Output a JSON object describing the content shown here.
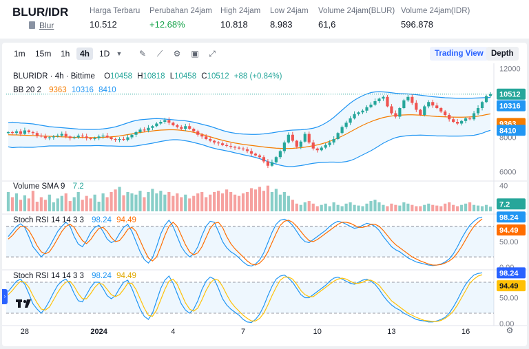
{
  "header": {
    "pair": "BLUR/IDR",
    "coin_name": "Blur",
    "stats": [
      {
        "label": "Harga Terbaru",
        "value": "10.512"
      },
      {
        "label": "Perubahan 24jam",
        "value": "+12.68%"
      },
      {
        "label": "High 24jam",
        "value": "10.818"
      },
      {
        "label": "Low 24jam",
        "value": "8.983"
      },
      {
        "label": "Volume 24jam(BLUR)",
        "value": "61,6"
      },
      {
        "label": "Volume 24jam(IDR)",
        "value": "596.878"
      }
    ]
  },
  "toolbar": {
    "timeframes": [
      "1m",
      "15m",
      "1h",
      "4h",
      "1D"
    ],
    "active_timeframe": "4h",
    "tools": [
      "pencil-icon",
      "line-chart-icon",
      "gear-icon",
      "save-icon",
      "expand-icon"
    ],
    "views": [
      "Trading View",
      "Depth"
    ],
    "active_view": "Trading View"
  },
  "legend": {
    "symbol": "BLURIDR · 4h · Bittime",
    "ohlc": {
      "O": "10458",
      "H": "10818",
      "L": "10458",
      "C": "10512",
      "change": "+88 (+0.84%)"
    },
    "bb": {
      "label": "BB 20 2",
      "basis": "9363",
      "upper": "10316",
      "lower": "8410"
    },
    "volume": {
      "label": "Volume SMA 9",
      "value": "7.2"
    },
    "stoch1": {
      "label": "Stoch RSI 14 14 3 3",
      "k": "98.24",
      "d": "94.49"
    },
    "stoch2": {
      "label": "Stoch RSI 14 14 3 3",
      "k": "98.24",
      "d": "94.49"
    }
  },
  "colors": {
    "up": "#26a69a",
    "down": "#ef5350",
    "bb_basis": "#f57c00",
    "bb_band": "#2196f3",
    "stoch_k": "#2196f3",
    "stoch_d": "#ff6d00",
    "stoch_d2": "#ffc107",
    "accent": "#2962ff"
  },
  "chart_data": {
    "type": "candlestick",
    "x_tick_labels": [
      "28",
      "2024",
      "4",
      "7",
      "10",
      "13",
      "16"
    ],
    "price_axis": {
      "ticks": [
        "12000",
        "10000",
        "8000",
        "6000"
      ],
      "ylim": [
        5500,
        12300
      ]
    },
    "volume_axis": {
      "ticks": [
        "40"
      ]
    },
    "stoch_axis": {
      "ticks": [
        "98.24",
        "94.49",
        "50.00",
        "0.00"
      ]
    },
    "price_labels": {
      "last": "10512",
      "bb_upper": "10316",
      "bb_basis": "9363",
      "bb_lower": "8410"
    },
    "volume_label": "7.2",
    "close": [
      8300,
      8250,
      8350,
      8200,
      8400,
      8300,
      8250,
      8100,
      8050,
      7950,
      8000,
      8050,
      8100,
      8200,
      8050,
      7950,
      8000,
      8100,
      8050,
      7950,
      7900,
      7950,
      8050,
      8100,
      8000,
      7900,
      7850,
      7900,
      7850,
      8000,
      8150,
      8300,
      8450,
      8400,
      8550,
      8650,
      8800,
      8900,
      9000,
      8850,
      8700,
      8600,
      8500,
      8650,
      8500,
      8350,
      8150,
      8050,
      7900,
      7800,
      7700,
      7650,
      7550,
      7500,
      7450,
      7400,
      7350,
      7300,
      7200,
      7050,
      6950,
      6850,
      6600,
      6350,
      6550,
      6850,
      7200,
      7700,
      8150,
      7800,
      7450,
      7750,
      8200,
      7700,
      7350,
      7250,
      7400,
      7550,
      7700,
      7900,
      8250,
      8600,
      8850,
      9100,
      9350,
      9450,
      9550,
      9750,
      9900,
      10100,
      10250,
      10350,
      9800,
      9400,
      9200,
      9700,
      10150,
      10350,
      10000,
      9600,
      9300,
      9800,
      10050,
      9850,
      9700,
      9500,
      9300,
      9050,
      8900,
      8800,
      8950,
      9100,
      9050,
      9400,
      9700,
      10050,
      10400,
      10512
    ],
    "bb_upper": [
      8850,
      8880,
      8860,
      8830,
      8820,
      8800,
      8780,
      8740,
      8700,
      8660,
      8620,
      8600,
      8580,
      8560,
      8540,
      8520,
      8500,
      8480,
      8470,
      8460,
      8460,
      8460,
      8470,
      8490,
      8520,
      8560,
      8610,
      8680,
      8760,
      8840,
      8920,
      8980,
      9020,
      9040,
      9060,
      9080,
      9090,
      9080,
      9060,
      9040,
      9020,
      9000,
      8980,
      8960,
      8920,
      8880,
      8820,
      8760,
      8700,
      8640,
      8560,
      8480,
      8400,
      8330,
      8280,
      8240,
      8210,
      8190,
      8180,
      8170,
      8170,
      8180,
      8200,
      8230,
      8260,
      8300,
      8340,
      8370,
      8400,
      8420,
      8430,
      8440,
      8460,
      8490,
      8530,
      8600,
      8700,
      8830,
      8980,
      9160,
      9370,
      9580,
      9790,
      9990,
      10160,
      10300,
      10420,
      10520,
      10600,
      10640,
      10650,
      10640,
      10620,
      10590,
      10560,
      10540,
      10530,
      10520,
      10500,
      10480,
      10450,
      10420,
      10390,
      10360,
      10340,
      10320,
      10300,
      10290,
      10280,
      10270,
      10265,
      10265,
      10270,
      10280,
      10290,
      10300,
      10310,
      10316
    ],
    "bb_basis": [
      8150,
      8140,
      8140,
      8130,
      8120,
      8110,
      8100,
      8090,
      8080,
      8070,
      8060,
      8050,
      8040,
      8030,
      8020,
      8010,
      8000,
      7995,
      7990,
      7985,
      7985,
      7990,
      7995,
      8000,
      8010,
      8030,
      8050,
      8080,
      8120,
      8160,
      8200,
      8240,
      8280,
      8310,
      8340,
      8370,
      8400,
      8420,
      8430,
      8440,
      8440,
      8430,
      8410,
      8380,
      8340,
      8290,
      8230,
      8170,
      8100,
      8030,
      7960,
      7890,
      7830,
      7770,
      7720,
      7670,
      7630,
      7590,
      7560,
      7530,
      7500,
      7470,
      7440,
      7410,
      7390,
      7370,
      7360,
      7350,
      7350,
      7360,
      7380,
      7400,
      7430,
      7470,
      7510,
      7560,
      7620,
      7690,
      7770,
      7860,
      7960,
      8070,
      8190,
      8320,
      8450,
      8580,
      8700,
      8810,
      8910,
      9000,
      9080,
      9150,
      9200,
      9240,
      9270,
      9290,
      9300,
      9310,
      9310,
      9300,
      9290,
      9270,
      9250,
      9230,
      9210,
      9200,
      9190,
      9180,
      9175,
      9170,
      9170,
      9175,
      9185,
      9200,
      9230,
      9270,
      9320,
      9363
    ],
    "bb_lower": [
      7450,
      7400,
      7420,
      7430,
      7420,
      7420,
      7420,
      7440,
      7460,
      7480,
      7500,
      7500,
      7500,
      7500,
      7500,
      7500,
      7500,
      7510,
      7510,
      7510,
      7510,
      7520,
      7520,
      7510,
      7500,
      7500,
      7490,
      7480,
      7480,
      7480,
      7480,
      7500,
      7540,
      7580,
      7620,
      7660,
      7710,
      7760,
      7800,
      7840,
      7860,
      7860,
      7840,
      7800,
      7760,
      7700,
      7640,
      7580,
      7500,
      7420,
      7360,
      7300,
      7260,
      7210,
      7160,
      7100,
      7050,
      6990,
      6940,
      6890,
      6830,
      6760,
      6680,
      6590,
      6520,
      6440,
      6380,
      6330,
      6300,
      6300,
      6330,
      6360,
      6400,
      6450,
      6490,
      6520,
      6540,
      6550,
      6560,
      6560,
      6550,
      6560,
      6590,
      6650,
      6740,
      6860,
      6980,
      7100,
      7220,
      7360,
      7510,
      7660,
      7780,
      7890,
      7980,
      8040,
      8070,
      8100,
      8120,
      8120,
      8130,
      8120,
      8110,
      8100,
      8080,
      8080,
      8080,
      8070,
      8070,
      8070,
      8075,
      8085,
      8100,
      8120,
      8170,
      8240,
      8330,
      8410
    ],
    "volume": [
      30,
      22,
      28,
      18,
      25,
      20,
      32,
      15,
      22,
      18,
      26,
      14,
      20,
      24,
      28,
      16,
      22,
      30,
      18,
      24,
      20,
      26,
      15,
      28,
      22,
      30,
      34,
      38,
      25,
      30,
      28,
      26,
      32,
      22,
      30,
      35,
      28,
      32,
      26,
      30,
      24,
      28,
      22,
      26,
      20,
      24,
      28,
      30,
      22,
      26,
      30,
      32,
      28,
      34,
      30,
      26,
      24,
      28,
      30,
      36,
      34,
      38,
      32,
      40,
      30,
      35,
      26,
      30,
      24,
      18,
      12,
      10,
      14,
      16,
      12,
      8,
      10,
      12,
      8,
      14,
      10,
      8,
      12,
      14,
      10,
      9,
      8,
      12,
      16,
      18,
      14,
      10,
      8,
      12,
      10,
      9,
      14,
      12,
      10,
      8,
      8,
      10,
      12,
      10,
      9,
      8,
      12,
      14,
      10,
      8,
      10,
      12,
      14,
      10,
      9,
      8,
      10,
      7.2
    ],
    "stoch_k": [
      60,
      70,
      80,
      85,
      78,
      60,
      40,
      30,
      20,
      28,
      40,
      55,
      70,
      80,
      88,
      80,
      60,
      45,
      40,
      52,
      68,
      78,
      82,
      70,
      55,
      48,
      52,
      66,
      78,
      84,
      70,
      50,
      30,
      15,
      8,
      18,
      40,
      65,
      82,
      92,
      80,
      60,
      40,
      28,
      20,
      26,
      40,
      62,
      80,
      90,
      88,
      70,
      50,
      38,
      30,
      25,
      18,
      10,
      4,
      2,
      6,
      14,
      28,
      48,
      68,
      84,
      92,
      94,
      90,
      82,
      70,
      58,
      50,
      48,
      54,
      60,
      66,
      72,
      80,
      86,
      90,
      88,
      84,
      80,
      76,
      78,
      82,
      86,
      84,
      80,
      72,
      60,
      50,
      40,
      34,
      30,
      24,
      18,
      14,
      10,
      8,
      6,
      4,
      3,
      4,
      6,
      10,
      16,
      26,
      40,
      56,
      70,
      82,
      90,
      96,
      98.24
    ],
    "stoch_d": [
      55,
      62,
      72,
      80,
      80,
      72,
      58,
      42,
      30,
      26,
      30,
      42,
      56,
      70,
      80,
      84,
      78,
      64,
      52,
      46,
      54,
      66,
      76,
      78,
      70,
      58,
      50,
      52,
      62,
      74,
      78,
      70,
      52,
      34,
      18,
      12,
      20,
      40,
      62,
      80,
      88,
      80,
      62,
      44,
      30,
      24,
      28,
      40,
      58,
      76,
      86,
      88,
      78,
      60,
      46,
      36,
      28,
      20,
      12,
      6,
      4,
      8,
      16,
      30,
      48,
      66,
      82,
      90,
      92,
      88,
      80,
      70,
      60,
      52,
      50,
      54,
      60,
      66,
      72,
      78,
      84,
      88,
      88,
      86,
      82,
      78,
      78,
      80,
      84,
      84,
      80,
      72,
      62,
      52,
      44,
      38,
      32,
      26,
      20,
      16,
      12,
      9,
      6,
      4,
      4,
      5,
      8,
      12,
      18,
      28,
      40,
      54,
      68,
      80,
      88,
      94.49
    ],
    "stoch2_k": [
      62,
      72,
      82,
      86,
      76,
      58,
      38,
      28,
      20,
      30,
      44,
      60,
      74,
      82,
      86,
      76,
      58,
      44,
      42,
      56,
      70,
      80,
      80,
      68,
      54,
      48,
      54,
      68,
      80,
      84,
      68,
      48,
      28,
      14,
      8,
      20,
      44,
      68,
      84,
      92,
      78,
      58,
      38,
      26,
      20,
      28,
      44,
      66,
      82,
      90,
      86,
      68,
      48,
      36,
      28,
      22,
      16,
      8,
      3,
      2,
      8,
      18,
      34,
      54,
      72,
      86,
      92,
      94,
      88,
      80,
      68,
      56,
      50,
      50,
      56,
      62,
      68,
      74,
      82,
      88,
      90,
      86,
      82,
      78,
      76,
      80,
      84,
      86,
      82,
      76,
      66,
      54,
      44,
      36,
      30,
      26,
      20,
      16,
      12,
      8,
      6,
      5,
      3,
      3,
      5,
      8,
      12,
      20,
      32,
      46,
      62,
      76,
      86,
      94,
      97,
      98.24
    ],
    "stoch2_d": [
      56,
      64,
      74,
      82,
      80,
      70,
      54,
      40,
      28,
      26,
      32,
      46,
      60,
      72,
      80,
      82,
      72,
      58,
      48,
      48,
      58,
      70,
      78,
      76,
      66,
      56,
      52,
      56,
      66,
      78,
      78,
      66,
      48,
      30,
      16,
      14,
      26,
      46,
      66,
      82,
      86,
      76,
      58,
      40,
      28,
      24,
      30,
      46,
      64,
      78,
      86,
      84,
      72,
      56,
      42,
      32,
      24,
      16,
      10,
      5,
      5,
      10,
      20,
      36,
      54,
      70,
      84,
      90,
      90,
      86,
      76,
      64,
      56,
      52,
      52,
      58,
      64,
      70,
      76,
      82,
      86,
      88,
      86,
      82,
      78,
      78,
      80,
      84,
      84,
      80,
      74,
      64,
      54,
      44,
      38,
      32,
      26,
      20,
      16,
      12,
      9,
      6,
      5,
      4,
      4,
      6,
      10,
      16,
      24,
      36,
      50,
      64,
      78,
      86,
      92,
      94.49
    ]
  }
}
